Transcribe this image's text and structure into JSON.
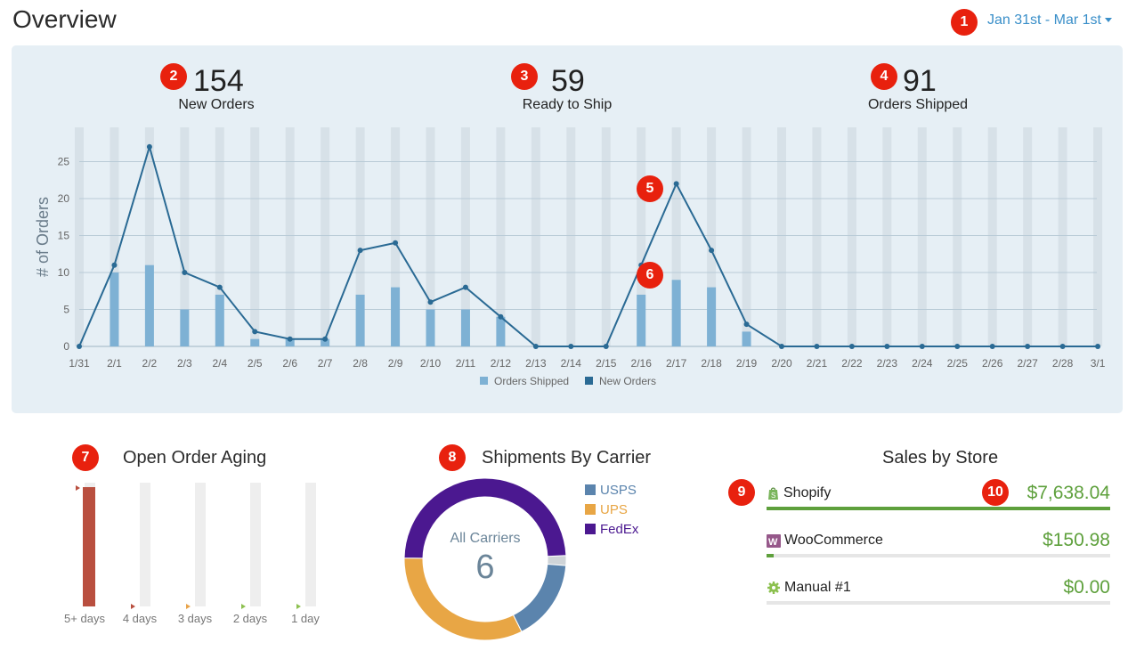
{
  "header": {
    "title": "Overview",
    "date_range": "Jan 31st - Mar 1st"
  },
  "badges": [
    "1",
    "2",
    "3",
    "4",
    "5",
    "6",
    "7",
    "8",
    "9",
    "10"
  ],
  "stats": [
    {
      "value": "154",
      "label": "New Orders"
    },
    {
      "value": "59",
      "label": "Ready to Ship"
    },
    {
      "value": "91",
      "label": "Orders Shipped"
    }
  ],
  "chart_data": {
    "type": "bar+line",
    "ylabel": "# of Orders",
    "ylim": [
      0,
      28
    ],
    "yticks": [
      0,
      5,
      10,
      15,
      20,
      25
    ],
    "categories": [
      "1/31",
      "2/1",
      "2/2",
      "2/3",
      "2/4",
      "2/5",
      "2/6",
      "2/7",
      "2/8",
      "2/9",
      "2/10",
      "2/11",
      "2/12",
      "2/13",
      "2/14",
      "2/15",
      "2/16",
      "2/17",
      "2/18",
      "2/19",
      "2/20",
      "2/21",
      "2/22",
      "2/23",
      "2/24",
      "2/25",
      "2/26",
      "2/27",
      "2/28",
      "3/1"
    ],
    "series": [
      {
        "name": "Orders Shipped",
        "type": "bar",
        "color": "#7eb1d4",
        "values": [
          0,
          10,
          11,
          5,
          7,
          1,
          1,
          1,
          7,
          8,
          5,
          5,
          4,
          0,
          0,
          0,
          7,
          9,
          8,
          2,
          0,
          0,
          0,
          0,
          0,
          0,
          0,
          0,
          0,
          0
        ]
      },
      {
        "name": "New Orders",
        "type": "line",
        "color": "#2a6a94",
        "values": [
          0,
          11,
          27,
          10,
          8,
          2,
          1,
          1,
          13,
          14,
          6,
          8,
          4,
          0,
          0,
          0,
          11,
          22,
          13,
          3,
          0,
          0,
          0,
          0,
          0,
          0,
          0,
          0,
          0,
          0
        ]
      }
    ],
    "legend": [
      "Orders Shipped",
      "New Orders"
    ]
  },
  "aging": {
    "title": "Open Order Aging",
    "buckets": [
      {
        "label": "5+ days",
        "fraction": 1.0,
        "color": "#b94f3f"
      },
      {
        "label": "4 days",
        "fraction": 0.0,
        "color": "#b94f3f"
      },
      {
        "label": "3 days",
        "fraction": 0.0,
        "color": "#e8a34a"
      },
      {
        "label": "2 days",
        "fraction": 0.0,
        "color": "#8cc04f"
      },
      {
        "label": "1 day",
        "fraction": 0.0,
        "color": "#8cc04f"
      }
    ]
  },
  "carriers": {
    "title": "Shipments By Carrier",
    "center_label": "All Carriers",
    "center_value": "6",
    "items": [
      {
        "name": "USPS",
        "color": "#5b84ad",
        "value": 1.0
      },
      {
        "name": "UPS",
        "color": "#e8a645",
        "value": 2.0
      },
      {
        "name": "FedEx",
        "color": "#4b1890",
        "value": 3.0
      }
    ],
    "other_fraction": 0.02
  },
  "stores": {
    "title": "Sales by Store",
    "items": [
      {
        "name": "Shopify",
        "amount": "$7,638.04",
        "fraction": 1.0,
        "icon": "shopify-icon"
      },
      {
        "name": "WooCommerce",
        "amount": "$150.98",
        "fraction": 0.02,
        "icon": "woocommerce-icon"
      },
      {
        "name": "Manual #1",
        "amount": "$0.00",
        "fraction": 0.0,
        "icon": "gear-icon"
      }
    ]
  }
}
